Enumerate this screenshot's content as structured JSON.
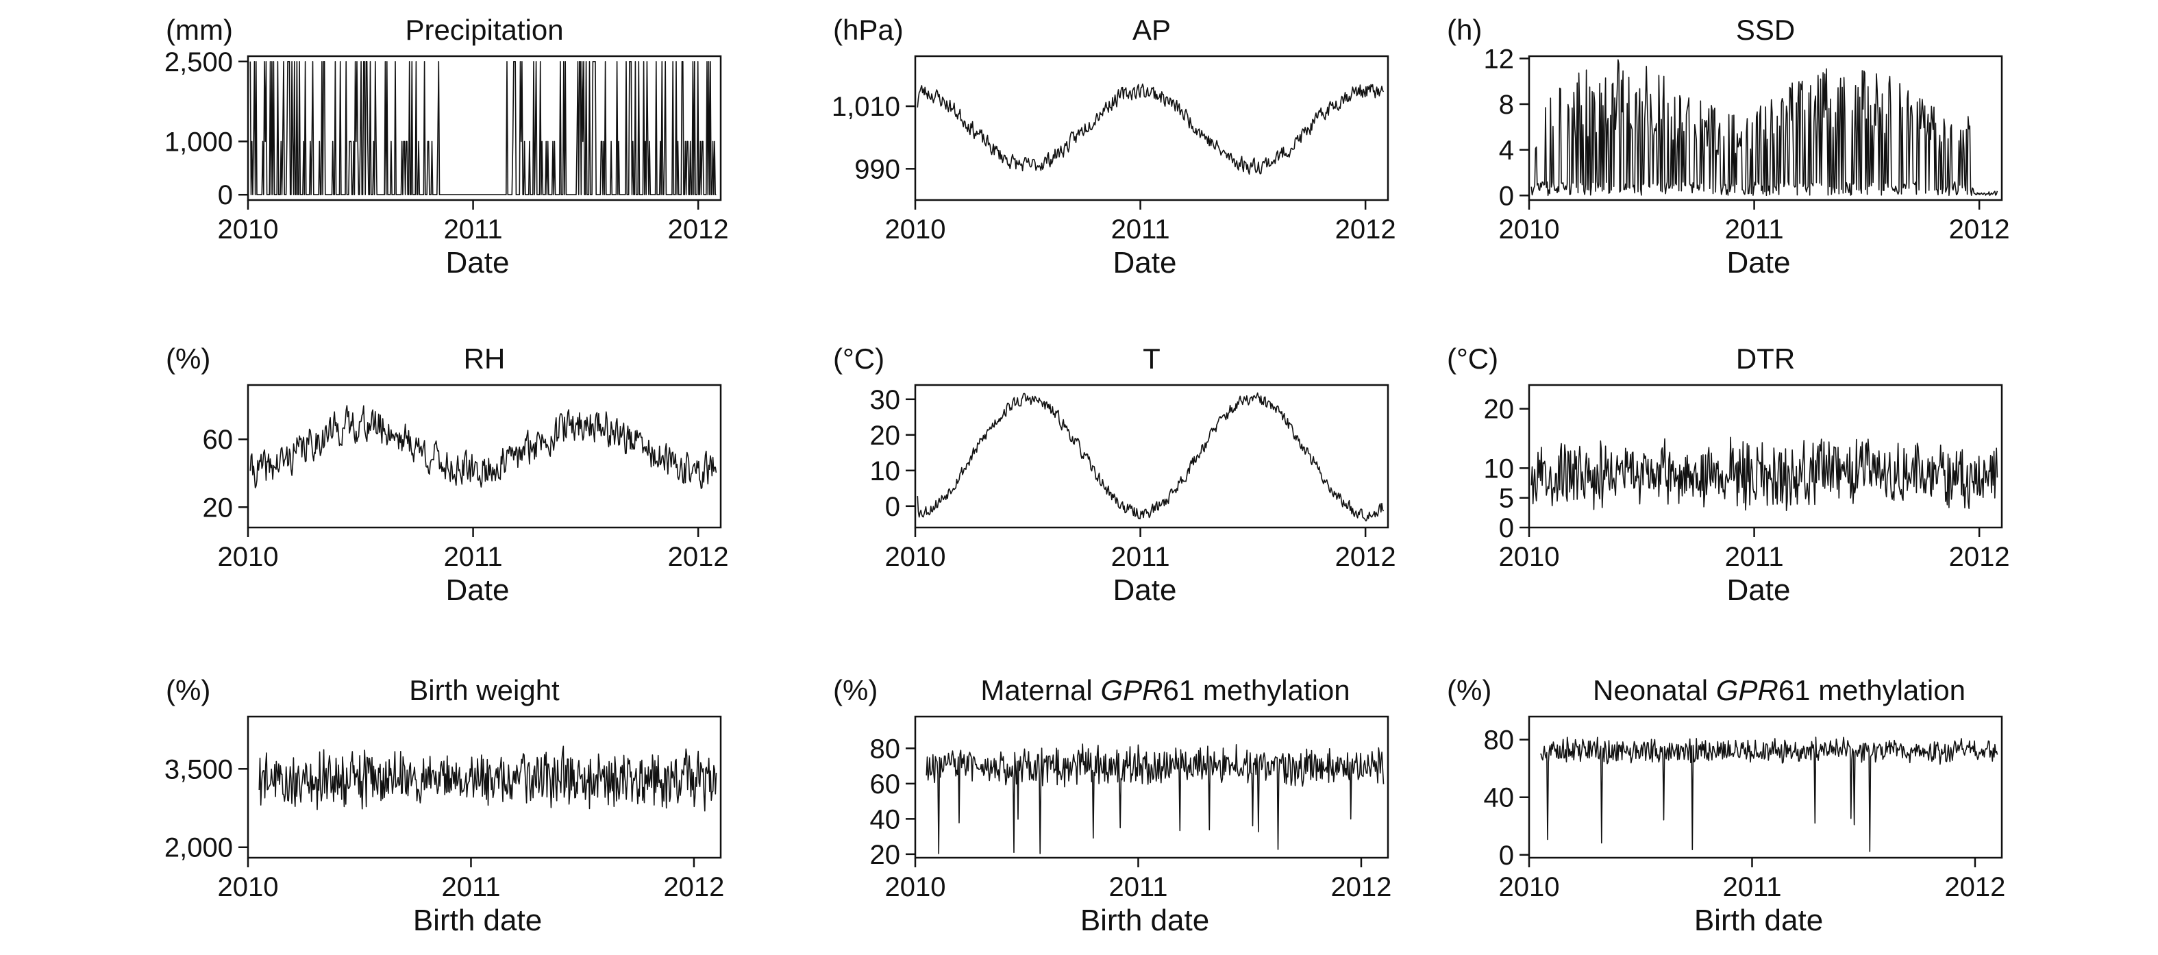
{
  "chart_data": [
    {
      "type": "line",
      "title": "Precipitation",
      "unit": "(mm)",
      "xlabel": "Date",
      "ylabel": "",
      "x_range": [
        2010.0,
        2012.1
      ],
      "xticks": [
        "2010",
        "2011",
        "2012"
      ],
      "ylim": [
        -100,
        2600
      ],
      "yticks": [
        {
          "value": 0,
          "label": "0"
        },
        {
          "value": 1000,
          "label": "1,000"
        },
        {
          "value": 2500,
          "label": "2,500"
        }
      ],
      "pattern": "spikes",
      "levels": [
        1000,
        2500
      ],
      "baseline": 0,
      "spike_fraction": 0.35,
      "dry_period": [
        2010.85,
        2011.15
      ],
      "seed": 11
    },
    {
      "type": "line",
      "title": "AP",
      "unit": "(hPa)",
      "xlabel": "Date",
      "ylabel": "",
      "x_range": [
        2010.0,
        2012.1
      ],
      "xticks": [
        "2010",
        "2011",
        "2012"
      ],
      "ylim": [
        980,
        1026
      ],
      "yticks": [
        {
          "value": 990,
          "label": "990"
        },
        {
          "value": 1010,
          "label": "1,010"
        }
      ],
      "pattern": "seasonal",
      "mean": 1003,
      "amplitude": 12,
      "phase": 0.0,
      "noise": 7,
      "seed": 23
    },
    {
      "type": "line",
      "title": "SSD",
      "unit": "(h)",
      "xlabel": "Date",
      "ylabel": "",
      "x_range": [
        2010.0,
        2012.1
      ],
      "xticks": [
        "2010",
        "2011",
        "2012"
      ],
      "ylim": [
        -0.4,
        12.2
      ],
      "yticks": [
        {
          "value": 0,
          "label": "0"
        },
        {
          "value": 4,
          "label": "4"
        },
        {
          "value": 8,
          "label": "8"
        },
        {
          "value": 12,
          "label": "12"
        }
      ],
      "pattern": "sunshine",
      "max": 12,
      "end_low": 2011.98,
      "seed": 37
    },
    {
      "type": "line",
      "title": "RH",
      "unit": "(%)",
      "xlabel": "Date",
      "ylabel": "",
      "x_range": [
        2010.0,
        2012.1
      ],
      "xticks": [
        "2010",
        "2011",
        "2012"
      ],
      "ylim": [
        8,
        92
      ],
      "yticks": [
        {
          "value": 20,
          "label": "20"
        },
        {
          "value": 60,
          "label": "60"
        }
      ],
      "pattern": "seasonal",
      "mean": 55,
      "amplitude": 14,
      "phase": 0.5,
      "noise": 28,
      "seed": 41
    },
    {
      "type": "line",
      "title": "T",
      "unit": "(°C)",
      "xlabel": "Date",
      "ylabel": "",
      "x_range": [
        2010.0,
        2012.1
      ],
      "xticks": [
        "2010",
        "2011",
        "2012"
      ],
      "ylim": [
        -6,
        34
      ],
      "yticks": [
        {
          "value": 0,
          "label": "0"
        },
        {
          "value": 10,
          "label": "10"
        },
        {
          "value": 20,
          "label": "20"
        },
        {
          "value": 30,
          "label": "30"
        }
      ],
      "pattern": "seasonal",
      "mean": 14,
      "amplitude": 16,
      "phase": 0.5,
      "noise": 5,
      "seed": 53
    },
    {
      "type": "line",
      "title": "DTR",
      "unit": "(°C)",
      "xlabel": "Date",
      "ylabel": "",
      "x_range": [
        2010.0,
        2012.1
      ],
      "xticks": [
        "2010",
        "2011",
        "2012"
      ],
      "ylim": [
        0,
        24
      ],
      "yticks": [
        {
          "value": 0,
          "label": "0"
        },
        {
          "value": 5,
          "label": "5"
        },
        {
          "value": 10,
          "label": "10"
        },
        {
          "value": 20,
          "label": "20"
        }
      ],
      "pattern": "noisy",
      "mean": 9,
      "noise": 13,
      "min": 1,
      "max": 23,
      "seed": 67
    },
    {
      "type": "line",
      "title": "Birth weight",
      "unit": "(%)",
      "xlabel": "Birth date",
      "ylabel": "",
      "x_range": [
        2010.0,
        2012.12
      ],
      "xticks": [
        "2010",
        "2011",
        "2012"
      ],
      "ylim": [
        1800,
        4500
      ],
      "yticks": [
        {
          "value": 2000,
          "label": "2,000"
        },
        {
          "value": 3500,
          "label": "3,500"
        }
      ],
      "pattern": "noisy",
      "start": 2010.05,
      "mean": 3300,
      "noise": 1300,
      "min": 1950,
      "max": 4450,
      "seed": 79
    },
    {
      "type": "line",
      "title_parts": [
        {
          "text": "Maternal ",
          "italic": false
        },
        {
          "text": "GPR",
          "italic": true
        },
        {
          "text": "61 methylation",
          "italic": false
        }
      ],
      "unit": "(%)",
      "xlabel": "Birth date",
      "ylabel": "",
      "x_range": [
        2010.0,
        2012.12
      ],
      "xticks": [
        "2010",
        "2011",
        "2012"
      ],
      "ylim": [
        18,
        98
      ],
      "yticks": [
        {
          "value": 20,
          "label": "20"
        },
        {
          "value": 40,
          "label": "40"
        },
        {
          "value": 60,
          "label": "60"
        },
        {
          "value": 80,
          "label": "80"
        }
      ],
      "pattern": "noisy",
      "start": 2010.05,
      "mean": 70,
      "noise": 26,
      "min": 20,
      "max": 96,
      "dips": 10,
      "seed": 83
    },
    {
      "type": "line",
      "title_parts": [
        {
          "text": "Neonatal ",
          "italic": false
        },
        {
          "text": "GPR",
          "italic": true
        },
        {
          "text": "61 methylation",
          "italic": false
        }
      ],
      "unit": "(%)",
      "xlabel": "Birth date",
      "ylabel": "",
      "x_range": [
        2010.0,
        2012.12
      ],
      "xticks": [
        "2010",
        "2011",
        "2012"
      ],
      "ylim": [
        -2,
        96
      ],
      "yticks": [
        {
          "value": 0,
          "label": "0"
        },
        {
          "value": 40,
          "label": "40"
        },
        {
          "value": 80,
          "label": "80"
        }
      ],
      "pattern": "noisy",
      "start": 2010.05,
      "mean": 72,
      "noise": 20,
      "min": 1,
      "max": 94,
      "dips": 12,
      "seed": 97
    }
  ]
}
